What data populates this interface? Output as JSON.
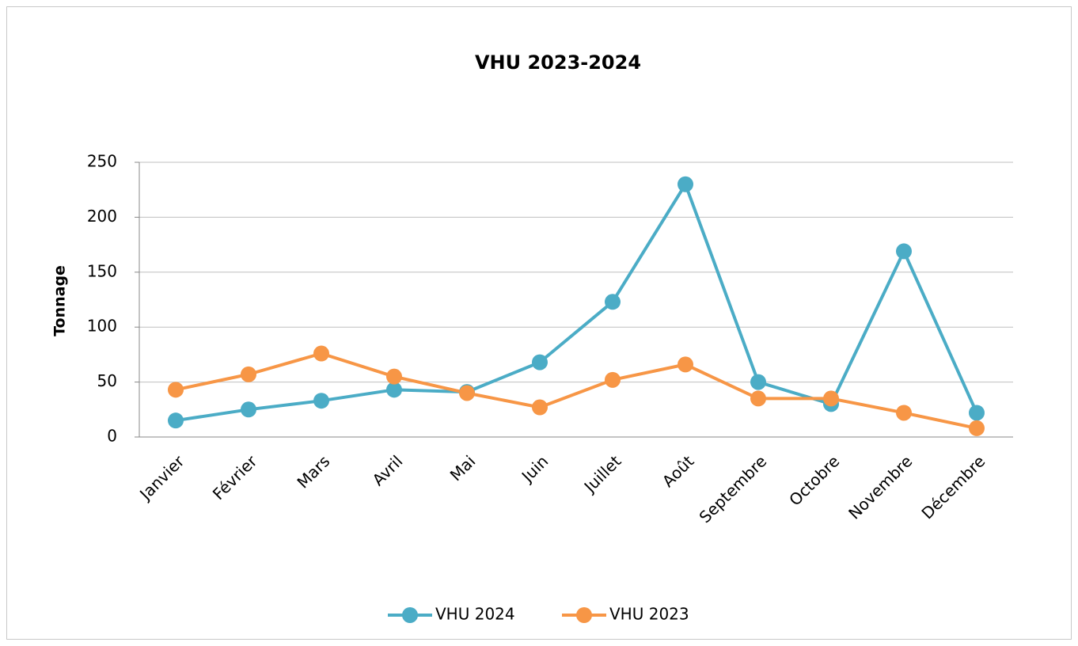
{
  "chart_data": {
    "type": "line",
    "title": "VHU 2023-2024",
    "y_label": "Tonnage",
    "categories": [
      "Janvier",
      "Février",
      "Mars",
      "Avril",
      "Mai",
      "Juin",
      "Juillet",
      "Août",
      "Septembre",
      "Octobre",
      "Novembre",
      "Décembre"
    ],
    "series": [
      {
        "name": "VHU 2024",
        "color": "#4bacc6",
        "values": [
          15,
          25,
          33,
          43,
          41,
          68,
          123,
          230,
          50,
          30,
          169,
          22
        ]
      },
      {
        "name": "VHU 2023",
        "color": "#f79646",
        "values": [
          43,
          57,
          76,
          55,
          40,
          27,
          52,
          66,
          35,
          35,
          22,
          8
        ]
      }
    ],
    "ylim": [
      0,
      250
    ],
    "yticks": [
      0,
      50,
      100,
      150,
      200,
      250
    ],
    "grid": true,
    "legend": "bottom"
  }
}
